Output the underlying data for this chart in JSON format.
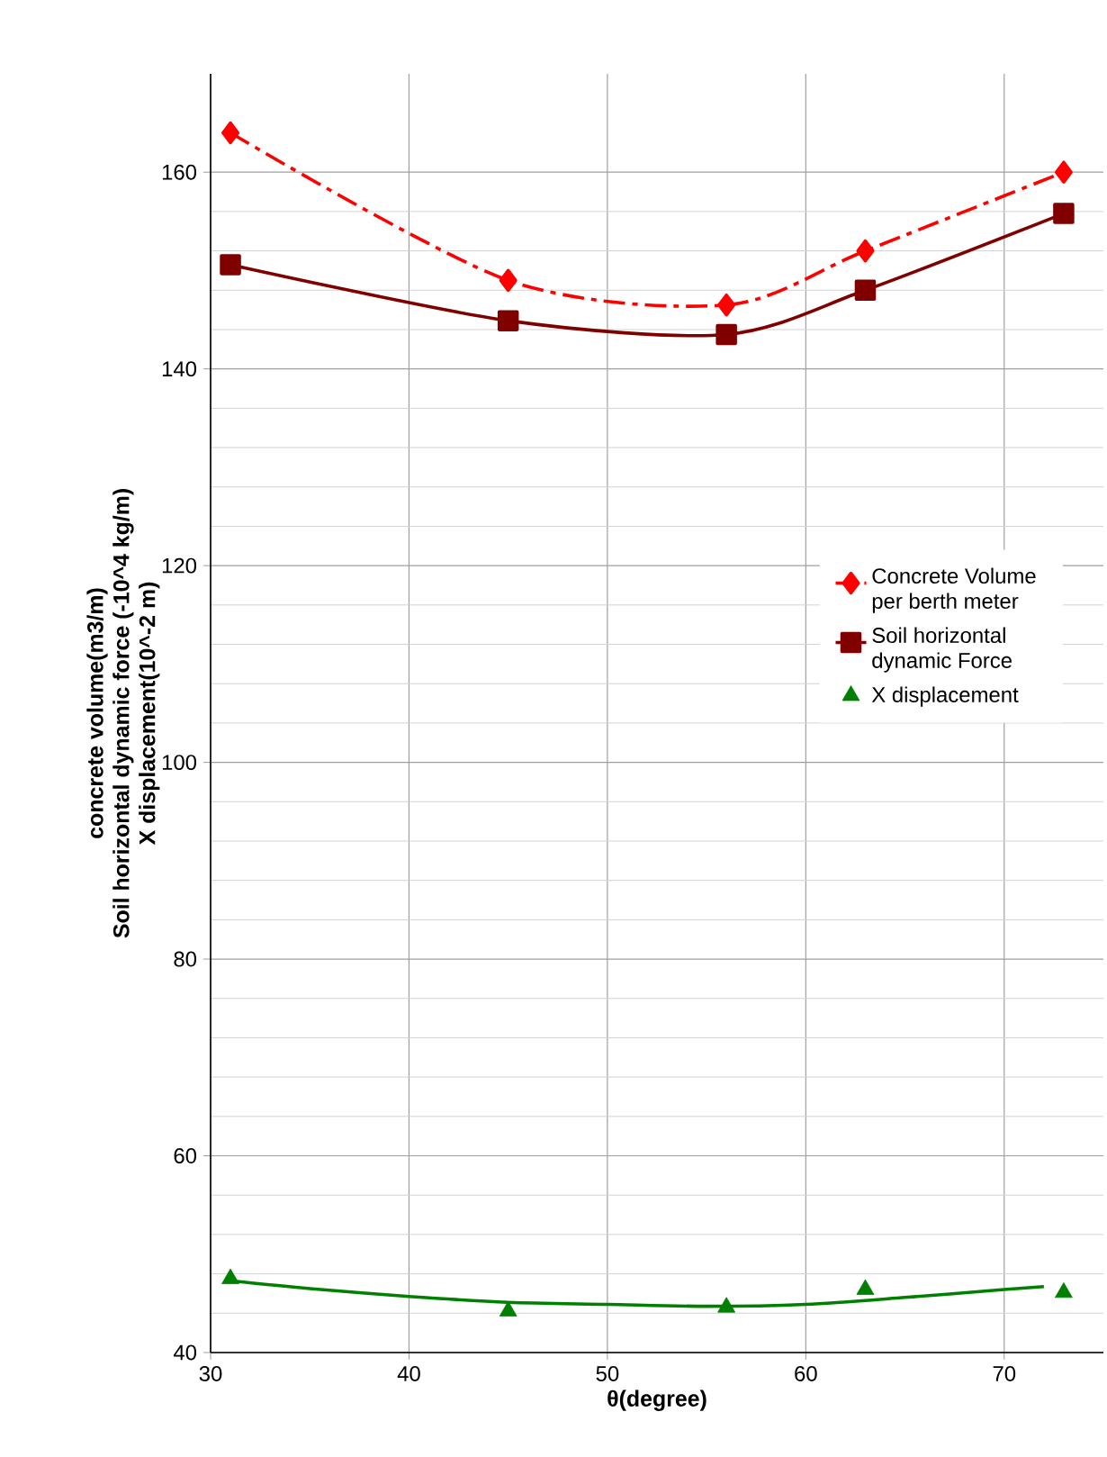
{
  "chart_data": {
    "type": "line",
    "xlabel": "θ(degree)",
    "ylabel": "concrete volume(m3/m)\nSoil horizontal dynamic force (-10^4 kg/m)\nX displacement(10^-2 m)",
    "xlim": [
      30,
      75
    ],
    "xticks": [
      30,
      40,
      50,
      60,
      70
    ],
    "ylim": [
      40,
      170
    ],
    "yticks": [
      40,
      60,
      80,
      100,
      120,
      140,
      160
    ],
    "grid": true,
    "legend": "right",
    "series": [
      {
        "name": "Concrete Volume per berth meter",
        "color": "#ff0000",
        "marker": "diamond",
        "line_style": "dashdot",
        "x": [
          31,
          45,
          56,
          63,
          73
        ],
        "values": [
          164,
          149,
          146.5,
          152,
          160
        ]
      },
      {
        "name": "Soil horizontal dynamic Force",
        "color": "#800000",
        "marker": "square",
        "line_style": "solid",
        "x": [
          31,
          45,
          56,
          63,
          73
        ],
        "values": [
          150.6,
          144.9,
          143.5,
          148,
          155.8
        ]
      },
      {
        "name": "X displacement",
        "type": "scatter",
        "color": "#008000",
        "marker": "triangle",
        "x": [
          31,
          45,
          56,
          63,
          73
        ],
        "values": [
          47.5,
          44.2,
          44.6,
          46.4,
          46.1
        ]
      },
      {
        "color": "#008000",
        "marker": "none",
        "line_style": "solid",
        "x": [
          31,
          35,
          40,
          45,
          50,
          55,
          60,
          65,
          70,
          72
        ],
        "values": [
          47.3,
          46.5,
          45.7,
          45.1,
          44.9,
          44.7,
          44.9,
          45.6,
          46.4,
          46.7
        ]
      }
    ]
  }
}
